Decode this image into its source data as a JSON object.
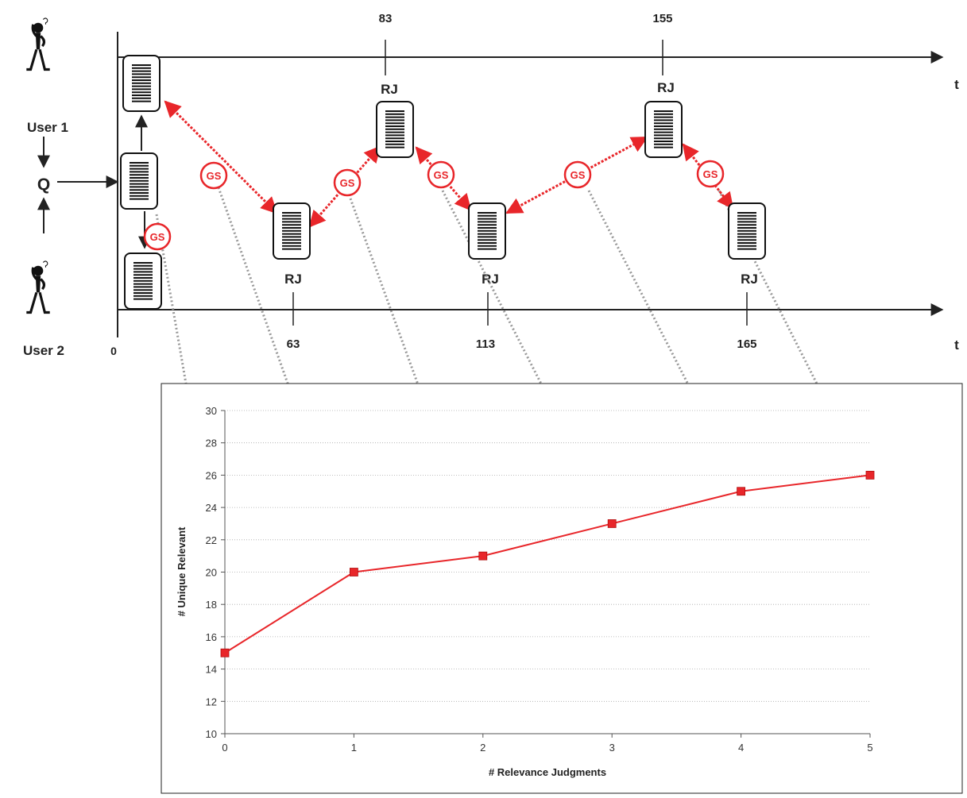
{
  "timeline": {
    "user1_label": "User 1",
    "user2_label": "User 2",
    "query_label": "Q",
    "time_label_top": "t",
    "time_label_bottom": "t",
    "origin_label": "0",
    "rj_label": "RJ",
    "gs_label": "GS",
    "top_ticks": [
      "83",
      "155"
    ],
    "bottom_ticks": [
      "63",
      "113",
      "165"
    ]
  },
  "colors": {
    "accent": "#e8262a",
    "axis": "#222222",
    "connector": "#999999"
  },
  "chart_data": {
    "type": "line",
    "x": [
      0,
      1,
      2,
      3,
      4,
      5
    ],
    "values": [
      15,
      20,
      21,
      23,
      25,
      26
    ],
    "xlabel": "# Relevance Judgments",
    "ylabel": "# Unique Relevant",
    "xlim": [
      0,
      5
    ],
    "ylim": [
      10,
      30
    ],
    "ytick_step": 2,
    "grid": true,
    "marker": "square",
    "color": "#e8262a"
  }
}
